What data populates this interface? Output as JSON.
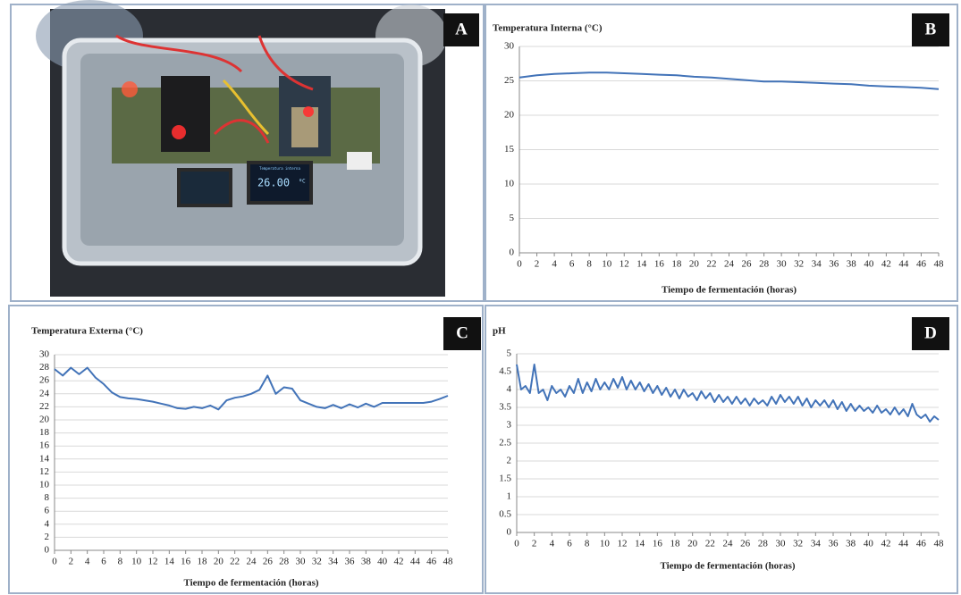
{
  "photo": {
    "label": "A",
    "display_title": "Temperatura interna",
    "display_value": "26.00",
    "display_unit": "ºC"
  },
  "chart_data": [
    {
      "type": "line",
      "panel_label": "B",
      "title": "Temperatura Interna (°C)",
      "x_label": "Tiempo de fermentación (horas)",
      "x": [
        0,
        2,
        4,
        6,
        8,
        10,
        12,
        14,
        16,
        18,
        20,
        22,
        24,
        26,
        28,
        30,
        32,
        34,
        36,
        38,
        40,
        42,
        44,
        46,
        48
      ],
      "values": [
        25.5,
        25.8,
        26.0,
        26.1,
        26.2,
        26.2,
        26.1,
        26.0,
        25.9,
        25.8,
        25.6,
        25.5,
        25.3,
        25.1,
        24.9,
        24.9,
        24.8,
        24.7,
        24.6,
        24.5,
        24.3,
        24.2,
        24.1,
        24.0,
        23.8
      ],
      "color": "#4273b8",
      "xlim": [
        0,
        48
      ],
      "xticks": [
        0,
        2,
        4,
        6,
        8,
        10,
        12,
        14,
        16,
        18,
        20,
        22,
        24,
        26,
        28,
        30,
        32,
        34,
        36,
        38,
        40,
        42,
        44,
        46,
        48
      ],
      "ylim": [
        0,
        30
      ],
      "yticks": [
        0,
        5,
        10,
        15,
        20,
        25,
        30
      ],
      "grid": true
    },
    {
      "type": "line",
      "panel_label": "C",
      "title": "Temperatura Externa (°C)",
      "x_label": "Tiempo de fermentación (horas)",
      "x": [
        0,
        1,
        2,
        3,
        4,
        5,
        6,
        7,
        8,
        9,
        10,
        11,
        12,
        13,
        14,
        15,
        16,
        17,
        18,
        19,
        20,
        21,
        22,
        23,
        24,
        25,
        26,
        27,
        28,
        29,
        30,
        31,
        32,
        33,
        34,
        35,
        36,
        37,
        38,
        39,
        40,
        41,
        42,
        43,
        44,
        45,
        46,
        47,
        48
      ],
      "values": [
        27.8,
        26.8,
        28.0,
        27.0,
        28.0,
        26.5,
        25.5,
        24.2,
        23.5,
        23.3,
        23.2,
        23.0,
        22.8,
        22.5,
        22.2,
        21.8,
        21.7,
        22.0,
        21.8,
        22.2,
        21.6,
        23.0,
        23.4,
        23.6,
        24.0,
        24.6,
        26.8,
        24.0,
        25.0,
        24.8,
        23.0,
        22.5,
        22.0,
        21.8,
        22.3,
        21.8,
        22.4,
        21.9,
        22.5,
        22.0,
        22.6,
        22.6,
        22.6,
        22.6,
        22.6,
        22.6,
        22.8,
        23.2,
        23.7
      ],
      "color": "#4273b8",
      "xlim": [
        0,
        48
      ],
      "xticks": [
        0,
        2,
        4,
        6,
        8,
        10,
        12,
        14,
        16,
        18,
        20,
        22,
        24,
        26,
        28,
        30,
        32,
        34,
        36,
        38,
        40,
        42,
        44,
        46,
        48
      ],
      "ylim": [
        0,
        30
      ],
      "yticks": [
        0,
        2,
        4,
        6,
        8,
        10,
        12,
        14,
        16,
        18,
        20,
        22,
        24,
        26,
        28,
        30
      ],
      "grid": true
    },
    {
      "type": "line",
      "panel_label": "D",
      "title": "pH",
      "x_label": "Tiempo de fermentación (horas)",
      "x": [
        0,
        0.5,
        1,
        1.5,
        2,
        2.5,
        3,
        3.5,
        4,
        4.5,
        5,
        5.5,
        6,
        6.5,
        7,
        7.5,
        8,
        8.5,
        9,
        9.5,
        10,
        10.5,
        11,
        11.5,
        12,
        12.5,
        13,
        13.5,
        14,
        14.5,
        15,
        15.5,
        16,
        16.5,
        17,
        17.5,
        18,
        18.5,
        19,
        19.5,
        20,
        20.5,
        21,
        21.5,
        22,
        22.5,
        23,
        23.5,
        24,
        24.5,
        25,
        25.5,
        26,
        26.5,
        27,
        27.5,
        28,
        28.5,
        29,
        29.5,
        30,
        30.5,
        31,
        31.5,
        32,
        32.5,
        33,
        33.5,
        34,
        34.5,
        35,
        35.5,
        36,
        36.5,
        37,
        37.5,
        38,
        38.5,
        39,
        39.5,
        40,
        40.5,
        41,
        41.5,
        42,
        42.5,
        43,
        43.5,
        44,
        44.5,
        45,
        45.5,
        46,
        46.5,
        47,
        47.5,
        48
      ],
      "values": [
        4.7,
        4.0,
        4.1,
        3.9,
        4.7,
        3.9,
        4.0,
        3.7,
        4.1,
        3.9,
        4.0,
        3.8,
        4.1,
        3.9,
        4.3,
        3.9,
        4.2,
        3.95,
        4.3,
        4.0,
        4.2,
        4.0,
        4.3,
        4.05,
        4.35,
        4.0,
        4.25,
        4.0,
        4.2,
        3.95,
        4.15,
        3.9,
        4.1,
        3.85,
        4.05,
        3.8,
        4.0,
        3.75,
        4.0,
        3.8,
        3.9,
        3.7,
        3.95,
        3.75,
        3.9,
        3.65,
        3.85,
        3.65,
        3.8,
        3.6,
        3.8,
        3.6,
        3.75,
        3.55,
        3.75,
        3.6,
        3.7,
        3.55,
        3.8,
        3.6,
        3.85,
        3.65,
        3.8,
        3.6,
        3.8,
        3.55,
        3.75,
        3.5,
        3.7,
        3.55,
        3.7,
        3.5,
        3.7,
        3.45,
        3.65,
        3.4,
        3.6,
        3.4,
        3.55,
        3.4,
        3.5,
        3.35,
        3.55,
        3.35,
        3.45,
        3.3,
        3.5,
        3.3,
        3.45,
        3.25,
        3.6,
        3.3,
        3.2,
        3.3,
        3.1,
        3.25,
        3.15
      ],
      "color": "#4273b8",
      "xlim": [
        0,
        48
      ],
      "xticks": [
        0,
        2,
        4,
        6,
        8,
        10,
        12,
        14,
        16,
        18,
        20,
        22,
        24,
        26,
        28,
        30,
        32,
        34,
        36,
        38,
        40,
        42,
        44,
        46,
        48
      ],
      "ylim": [
        0,
        5
      ],
      "yticks": [
        0,
        0.5,
        1,
        1.5,
        2,
        2.5,
        3,
        3.5,
        4,
        4.5,
        5
      ],
      "grid": true
    }
  ]
}
